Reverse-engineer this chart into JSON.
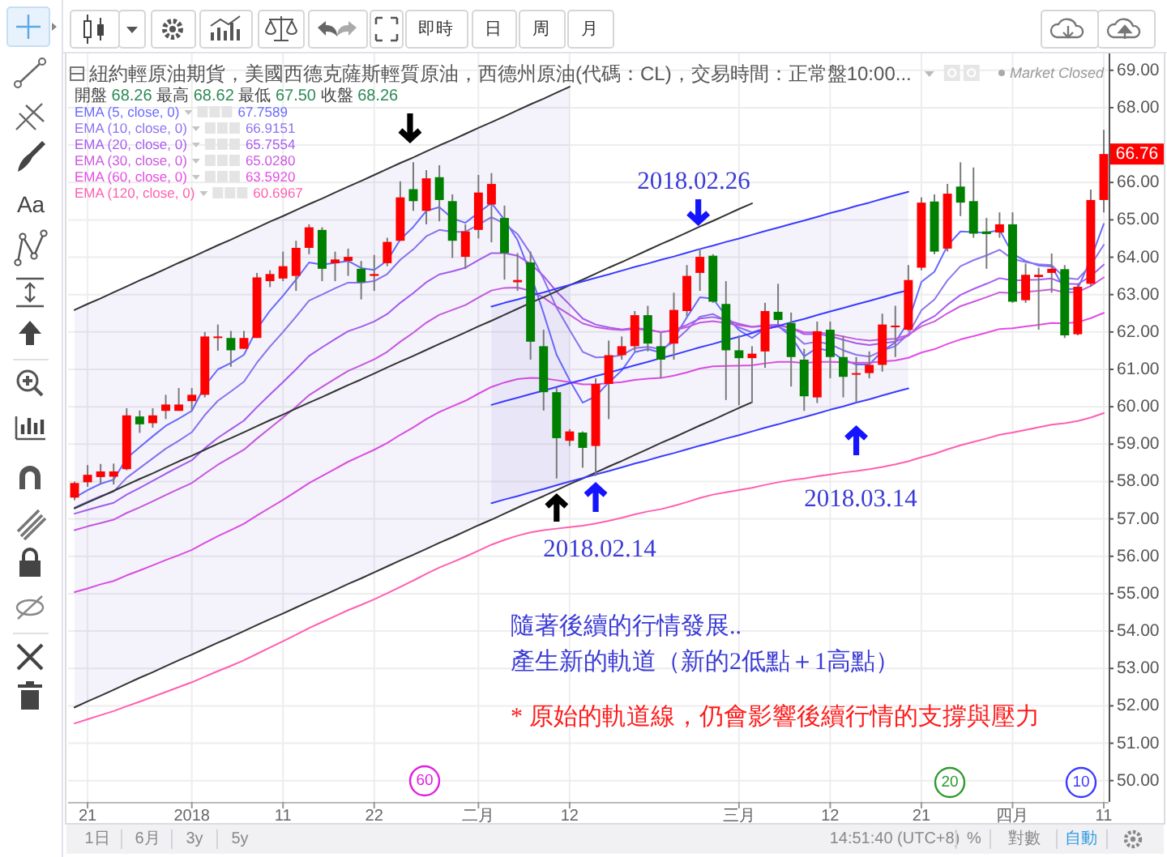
{
  "chart_data": {
    "type": "candlestick",
    "title": "紐約輕原油期貨，美國西德克薩斯輕質原油，西德州原油(代碼：CL)，交易時間：正常盤10:00...",
    "subtitle": "開盤 68.26 最高 68.62 最低 67.50 收盤 68.26",
    "categories": [
      null,
      "21",
      null,
      null,
      null,
      null,
      null,
      null,
      null,
      "2018",
      null,
      null,
      null,
      null,
      null,
      null,
      "11",
      null,
      null,
      null,
      null,
      null,
      null,
      "22",
      null,
      null,
      null,
      null,
      null,
      null,
      null,
      "二月",
      null,
      null,
      null,
      null,
      null,
      null,
      "12",
      null,
      null,
      null,
      null,
      null,
      null,
      null,
      null,
      null,
      null,
      null,
      null,
      "三月",
      null,
      null,
      null,
      null,
      null,
      null,
      "12",
      null,
      null,
      null,
      null,
      null,
      null,
      "21",
      null,
      null,
      null,
      null,
      null,
      null,
      "四月",
      null,
      null,
      null,
      null,
      null,
      null,
      "11"
    ],
    "ohlc": [
      [
        57.57,
        58.0,
        57.5,
        57.96
      ],
      [
        57.98,
        58.44,
        57.86,
        58.18
      ],
      [
        58.12,
        58.47,
        57.94,
        58.27
      ],
      [
        58.13,
        58.48,
        57.92,
        58.27
      ],
      [
        58.33,
        59.96,
        58.3,
        59.77
      ],
      [
        59.74,
        59.9,
        59.3,
        59.53
      ],
      [
        59.56,
        59.96,
        59.44,
        59.77
      ],
      [
        59.89,
        60.32,
        59.67,
        60.06
      ],
      [
        59.89,
        60.5,
        59.89,
        60.06
      ],
      [
        60.15,
        60.5,
        59.89,
        60.32
      ],
      [
        60.32,
        62.0,
        60.25,
        61.88
      ],
      [
        61.86,
        62.2,
        61.5,
        61.88
      ],
      [
        61.84,
        62.03,
        61.07,
        61.51
      ],
      [
        61.55,
        62.03,
        61.55,
        61.84
      ],
      [
        61.84,
        63.58,
        61.84,
        63.46
      ],
      [
        63.36,
        63.65,
        63.2,
        63.55
      ],
      [
        63.43,
        64.15,
        63.36,
        63.76
      ],
      [
        63.5,
        64.44,
        63.1,
        64.25
      ],
      [
        64.25,
        64.88,
        64.08,
        64.8
      ],
      [
        64.73,
        64.8,
        63.36,
        63.69
      ],
      [
        63.84,
        64.15,
        63.36,
        63.94
      ],
      [
        63.9,
        64.23,
        63.5,
        64.01
      ],
      [
        63.69,
        63.9,
        62.87,
        63.33
      ],
      [
        63.5,
        64.06,
        63.1,
        63.55
      ],
      [
        63.84,
        64.52,
        63.76,
        64.41
      ],
      [
        64.44,
        66.03,
        64.44,
        65.6
      ],
      [
        65.82,
        66.54,
        65.24,
        65.5
      ],
      [
        65.24,
        66.33,
        64.88,
        66.11
      ],
      [
        66.14,
        66.46,
        64.96,
        65.53
      ],
      [
        65.5,
        65.68,
        63.98,
        64.44
      ],
      [
        64.01,
        64.88,
        63.69,
        64.69
      ],
      [
        64.73,
        66.2,
        64.5,
        65.73
      ],
      [
        65.41,
        66.25,
        64.4,
        65.96
      ],
      [
        65.05,
        65.38,
        63.4,
        64.11
      ],
      [
        63.33,
        64.11,
        63.1,
        63.39
      ],
      [
        63.86,
        64.15,
        61.26,
        61.74
      ],
      [
        61.62,
        62.06,
        59.9,
        60.39
      ],
      [
        60.39,
        60.5,
        58.08,
        59.16
      ],
      [
        59.09,
        59.4,
        58.95,
        59.34
      ],
      [
        59.31,
        59.34,
        58.37,
        58.9
      ],
      [
        58.95,
        60.76,
        58.15,
        60.61
      ],
      [
        60.61,
        61.77,
        59.67,
        61.38
      ],
      [
        61.38,
        61.88,
        61.26,
        61.62
      ],
      [
        61.62,
        62.56,
        61.48,
        62.45
      ],
      [
        62.45,
        62.7,
        61.48,
        61.69
      ],
      [
        61.62,
        61.98,
        60.76,
        61.26
      ],
      [
        61.69,
        63.05,
        61.26,
        62.59
      ],
      [
        62.56,
        63.79,
        62.42,
        63.5
      ],
      [
        63.58,
        64.23,
        63.1,
        64.01
      ],
      [
        64.04,
        64.08,
        62.78,
        62.81
      ],
      [
        62.75,
        63.36,
        60.18,
        61.51
      ],
      [
        61.51,
        61.91,
        60.04,
        61.3
      ],
      [
        61.3,
        61.62,
        60.11,
        61.42
      ],
      [
        61.48,
        62.78,
        61.04,
        62.56
      ],
      [
        62.54,
        63.29,
        62.2,
        62.32
      ],
      [
        62.24,
        62.52,
        60.54,
        61.33
      ],
      [
        61.26,
        61.55,
        59.89,
        60.28
      ],
      [
        60.25,
        62.28,
        60.1,
        62.02
      ],
      [
        62.06,
        62.28,
        60.76,
        61.33
      ],
      [
        61.33,
        61.9,
        60.25,
        60.8
      ],
      [
        60.87,
        61.33,
        60.11,
        60.9
      ],
      [
        60.9,
        61.48,
        60.76,
        61.12
      ],
      [
        61.12,
        62.49,
        60.94,
        62.2
      ],
      [
        62.13,
        62.7,
        61.33,
        62.17
      ],
      [
        62.06,
        63.79,
        62.02,
        63.39
      ],
      [
        63.72,
        65.6,
        63.65,
        65.46
      ],
      [
        65.49,
        65.68,
        64.08,
        64.15
      ],
      [
        64.23,
        65.96,
        64.15,
        65.7
      ],
      [
        65.89,
        66.54,
        65.1,
        65.46
      ],
      [
        65.5,
        66.4,
        64.52,
        64.63
      ],
      [
        64.69,
        65.05,
        63.69,
        64.62
      ],
      [
        64.66,
        65.2,
        64.52,
        64.88
      ],
      [
        64.88,
        65.2,
        62.78,
        62.81
      ],
      [
        62.85,
        63.83,
        62.78,
        63.53
      ],
      [
        63.47,
        63.72,
        62.06,
        63.53
      ],
      [
        63.58,
        64.1,
        63.05,
        63.69
      ],
      [
        63.68,
        63.79,
        61.84,
        61.91
      ],
      [
        61.94,
        63.29,
        61.91,
        63.21
      ],
      [
        63.29,
        65.81,
        63.21,
        65.53
      ],
      [
        65.53,
        67.41,
        65.2,
        66.76
      ]
    ],
    "series": [
      {
        "name": "EMA (5, close, 0)",
        "type": "line",
        "color": "#6a6aff",
        "values": [
          57.57,
          57.77,
          57.94,
          58.05,
          58.62,
          58.92,
          59.21,
          59.49,
          59.68,
          59.89,
          60.56,
          61.0,
          61.17,
          61.39,
          62.08,
          62.57,
          62.97,
          63.4,
          63.86,
          63.8,
          63.85,
          63.9,
          63.71,
          63.66,
          63.91,
          64.47,
          64.81,
          65.24,
          65.34,
          65.04,
          64.92,
          65.19,
          65.45,
          65.0,
          64.46,
          63.55,
          62.5,
          61.39,
          60.71,
          60.11,
          60.28,
          60.65,
          60.97,
          61.46,
          61.54,
          61.45,
          61.83,
          62.39,
          62.93,
          62.89,
          62.43,
          62.05,
          61.84,
          62.08,
          62.16,
          61.88,
          61.35,
          61.57,
          61.49,
          61.26,
          61.13,
          61.13,
          61.49,
          61.72,
          62.28,
          63.34,
          63.61,
          64.31,
          64.69,
          64.67,
          64.65,
          64.73,
          64.09,
          63.9,
          63.78,
          63.75,
          63.14,
          63.16,
          63.95,
          64.89
        ]
      },
      {
        "name": "EMA (10, close, 0)",
        "type": "line",
        "color": "#8f74ee",
        "values": [
          57.3,
          57.46,
          57.61,
          57.73,
          58.1,
          58.36,
          58.62,
          58.88,
          59.09,
          59.32,
          59.78,
          60.16,
          60.41,
          60.67,
          61.18,
          61.61,
          62.0,
          62.41,
          62.84,
          63.0,
          63.17,
          63.32,
          63.32,
          63.36,
          63.55,
          63.93,
          64.21,
          64.56,
          64.73,
          64.68,
          64.68,
          64.87,
          65.07,
          64.9,
          64.62,
          64.1,
          63.42,
          62.65,
          62.05,
          61.47,
          61.32,
          61.33,
          61.38,
          61.57,
          61.6,
          61.54,
          61.73,
          62.05,
          62.41,
          62.48,
          62.3,
          62.12,
          61.99,
          62.1,
          62.14,
          61.99,
          61.68,
          61.74,
          61.67,
          61.51,
          61.39,
          61.34,
          61.5,
          61.62,
          61.94,
          62.58,
          62.87,
          63.38,
          63.76,
          63.92,
          64.05,
          64.2,
          63.95,
          63.87,
          63.81,
          63.79,
          63.45,
          63.41,
          63.79,
          64.33
        ]
      },
      {
        "name": "EMA (20, close, 0)",
        "type": "line",
        "color": "#a85cf0",
        "values": [
          57.14,
          57.24,
          57.34,
          57.43,
          57.65,
          57.83,
          58.02,
          58.21,
          58.39,
          58.57,
          58.89,
          59.17,
          59.4,
          59.63,
          59.99,
          60.33,
          60.66,
          61.0,
          61.36,
          61.59,
          61.81,
          62.02,
          62.14,
          62.28,
          62.48,
          62.78,
          63.04,
          63.33,
          63.54,
          63.62,
          63.72,
          63.92,
          64.11,
          64.11,
          64.04,
          63.82,
          63.5,
          63.08,
          62.73,
          62.36,
          62.2,
          62.12,
          62.07,
          62.11,
          62.07,
          61.99,
          62.05,
          62.19,
          62.36,
          62.4,
          62.32,
          62.22,
          62.14,
          62.18,
          62.19,
          62.11,
          61.94,
          61.95,
          61.89,
          61.79,
          61.7,
          61.65,
          61.7,
          61.74,
          61.9,
          62.24,
          62.42,
          62.73,
          62.99,
          63.15,
          63.29,
          63.44,
          63.38,
          63.39,
          63.4,
          63.43,
          63.29,
          63.28,
          63.49,
          63.8
        ]
      },
      {
        "name": "EMA (30, close, 0)",
        "type": "line",
        "color": "#cc58e0",
        "values": [
          56.7,
          56.8,
          56.89,
          56.98,
          57.16,
          57.31,
          57.47,
          57.64,
          57.8,
          57.96,
          58.21,
          58.45,
          58.65,
          58.85,
          59.15,
          59.43,
          59.71,
          60.0,
          60.31,
          60.53,
          60.75,
          60.96,
          61.11,
          61.27,
          61.47,
          61.74,
          61.98,
          62.25,
          62.46,
          62.59,
          62.72,
          62.92,
          63.11,
          63.18,
          63.19,
          63.1,
          62.92,
          62.68,
          62.46,
          62.23,
          62.13,
          62.08,
          62.05,
          62.08,
          62.05,
          62.0,
          62.04,
          62.13,
          62.25,
          62.29,
          62.24,
          62.18,
          62.13,
          62.16,
          62.17,
          62.11,
          61.99,
          61.99,
          61.95,
          61.88,
          61.81,
          61.77,
          61.8,
          61.82,
          61.92,
          62.15,
          62.28,
          62.5,
          62.69,
          62.81,
          62.93,
          63.06,
          63.04,
          63.07,
          63.1,
          63.14,
          63.06,
          63.07,
          63.23,
          63.46
        ]
      },
      {
        "name": "EMA (60, close, 0)",
        "type": "line",
        "color": "#e44ce4",
        "values": [
          55.04,
          55.14,
          55.25,
          55.34,
          55.49,
          55.62,
          55.76,
          55.9,
          56.03,
          56.17,
          56.36,
          56.54,
          56.7,
          56.87,
          57.09,
          57.3,
          57.51,
          57.73,
          57.96,
          58.15,
          58.34,
          58.53,
          58.69,
          58.85,
          59.03,
          59.25,
          59.45,
          59.67,
          59.86,
          60.01,
          60.16,
          60.35,
          60.53,
          60.65,
          60.74,
          60.77,
          60.76,
          60.71,
          60.66,
          60.6,
          60.6,
          60.63,
          60.66,
          60.72,
          60.75,
          60.77,
          60.83,
          60.92,
          61.02,
          61.08,
          61.09,
          61.1,
          61.11,
          61.16,
          61.2,
          61.2,
          61.17,
          61.2,
          61.2,
          61.19,
          61.18,
          61.18,
          61.21,
          61.24,
          61.31,
          61.45,
          61.54,
          61.68,
          61.8,
          61.89,
          61.98,
          62.08,
          62.1,
          62.15,
          62.19,
          62.24,
          62.23,
          62.26,
          62.37,
          62.51
        ]
      },
      {
        "name": "EMA (120, close, 0)",
        "type": "line",
        "color": "#ff5fb0",
        "values": [
          51.53,
          51.64,
          51.75,
          51.86,
          51.99,
          52.11,
          52.24,
          52.37,
          52.5,
          52.63,
          52.78,
          52.93,
          53.07,
          53.22,
          53.39,
          53.56,
          53.73,
          53.9,
          54.08,
          54.24,
          54.4,
          54.56,
          54.7,
          54.85,
          55.01,
          55.18,
          55.35,
          55.53,
          55.7,
          55.84,
          55.99,
          56.15,
          56.31,
          56.44,
          56.55,
          56.64,
          56.7,
          56.74,
          56.78,
          56.82,
          56.88,
          56.95,
          57.03,
          57.12,
          57.2,
          57.26,
          57.35,
          57.45,
          57.56,
          57.65,
          57.71,
          57.77,
          57.83,
          57.91,
          57.98,
          58.04,
          58.08,
          58.14,
          58.19,
          58.24,
          58.28,
          58.33,
          58.39,
          58.46,
          58.54,
          58.65,
          58.74,
          58.86,
          58.97,
          59.06,
          59.15,
          59.25,
          59.31,
          59.38,
          59.45,
          59.52,
          59.56,
          59.62,
          59.71,
          59.83
        ]
      },
      {
        "type": "line",
        "color": "#333333",
        "values": [
          57.28,
          57.44,
          57.59,
          57.75,
          57.91,
          58.07,
          58.22,
          58.38,
          58.54,
          58.69,
          58.85,
          59.01,
          59.16,
          59.32,
          59.48,
          59.64,
          59.79,
          59.95,
          60.11,
          60.26,
          60.42,
          60.58,
          60.73,
          60.89,
          61.05,
          61.21,
          61.36,
          61.52,
          61.68,
          61.83,
          61.99,
          62.15,
          62.3,
          62.46,
          62.62,
          62.78,
          62.93,
          63.09,
          63.25,
          63.4,
          63.56,
          63.72,
          63.87,
          64.03,
          64.19,
          64.35,
          64.5,
          64.66,
          64.82,
          64.97,
          65.13,
          65.29,
          65.44,
          null,
          null,
          null,
          null,
          null,
          null,
          null,
          null,
          null,
          null,
          null,
          null,
          null,
          null,
          null,
          null,
          null,
          null,
          null,
          null,
          null,
          null,
          null,
          null,
          null,
          null,
          null
        ],
        "lower": [
          51.96,
          52.12,
          52.27,
          52.43,
          52.59,
          52.75,
          52.9,
          53.06,
          53.22,
          53.37,
          53.53,
          53.69,
          53.84,
          54.0,
          54.16,
          54.32,
          54.47,
          54.63,
          54.79,
          54.94,
          55.1,
          55.26,
          55.41,
          55.57,
          55.73,
          55.89,
          56.04,
          56.2,
          56.36,
          56.51,
          56.67,
          56.83,
          56.98,
          57.14,
          57.3,
          57.46,
          57.61,
          57.77,
          57.93,
          null,
          null,
          null,
          null,
          null,
          null,
          null,
          null,
          null,
          null,
          null,
          null,
          null,
          null,
          null,
          null,
          null,
          null,
          null,
          null,
          null,
          null,
          null,
          null,
          null,
          null,
          null,
          null,
          null,
          null,
          null,
          null,
          null,
          null,
          null,
          null,
          null,
          null,
          null,
          null,
          null
        ],
        "upper": [
          62.59,
          62.75,
          62.9,
          63.06,
          63.22,
          63.38,
          63.53,
          63.69,
          63.85,
          64.0,
          64.16,
          64.32,
          64.47,
          64.63,
          64.79,
          64.95,
          65.1,
          65.26,
          65.42,
          65.57,
          65.73,
          65.89,
          66.04,
          66.2,
          66.36,
          66.52,
          66.67,
          66.83,
          66.99,
          67.14,
          67.3,
          67.46,
          67.61,
          67.77,
          67.93,
          68.09,
          68.24,
          68.4,
          68.56,
          null,
          null,
          null,
          null,
          null,
          null,
          null,
          null,
          null,
          null,
          null,
          null,
          null,
          null,
          null,
          null,
          null,
          null,
          null,
          null,
          null,
          null,
          null,
          null,
          null,
          null,
          null,
          null,
          null,
          null,
          null,
          null,
          null,
          null,
          null,
          null,
          null,
          null,
          null,
          null,
          null
        ]
      },
      {
        "type": "line",
        "color": "#3b3bff",
        "values": [
          null,
          null,
          null,
          null,
          null,
          null,
          null,
          null,
          null,
          null,
          null,
          null,
          null,
          null,
          null,
          null,
          null,
          null,
          null,
          null,
          null,
          null,
          null,
          null,
          null,
          null,
          null,
          null,
          null,
          null,
          null,
          null,
          60.05,
          60.15,
          60.24,
          60.34,
          60.43,
          60.53,
          60.63,
          60.72,
          60.82,
          60.91,
          61.01,
          61.11,
          61.2,
          61.3,
          61.39,
          61.49,
          61.59,
          61.68,
          61.78,
          61.87,
          61.97,
          62.07,
          62.16,
          62.26,
          62.35,
          62.45,
          62.55,
          62.64,
          62.74,
          62.83,
          62.93,
          63.03,
          63.12,
          null,
          null,
          null,
          null,
          null,
          null,
          null,
          null,
          null,
          null,
          null,
          null,
          null,
          null,
          null
        ],
        "lower": [
          null,
          null,
          null,
          null,
          null,
          null,
          null,
          null,
          null,
          null,
          null,
          null,
          null,
          null,
          null,
          null,
          null,
          null,
          null,
          null,
          null,
          null,
          null,
          null,
          null,
          null,
          null,
          null,
          null,
          null,
          null,
          null,
          57.42,
          57.52,
          57.61,
          57.71,
          57.8,
          57.9,
          58.0,
          58.09,
          58.19,
          58.28,
          58.38,
          58.48,
          58.57,
          58.67,
          58.76,
          58.86,
          58.96,
          59.05,
          59.15,
          59.24,
          59.34,
          59.44,
          59.53,
          59.63,
          59.72,
          59.82,
          59.92,
          60.01,
          60.11,
          60.2,
          60.3,
          60.4,
          60.49,
          null,
          null,
          null,
          null,
          null,
          null,
          null,
          null,
          null,
          null,
          null,
          null,
          null,
          null,
          null
        ],
        "upper": [
          null,
          null,
          null,
          null,
          null,
          null,
          null,
          null,
          null,
          null,
          null,
          null,
          null,
          null,
          null,
          null,
          null,
          null,
          null,
          null,
          null,
          null,
          null,
          null,
          null,
          null,
          null,
          null,
          null,
          null,
          null,
          null,
          62.68,
          62.78,
          62.87,
          62.97,
          63.06,
          63.16,
          63.26,
          63.35,
          63.45,
          63.54,
          63.64,
          63.74,
          63.83,
          63.93,
          64.02,
          64.12,
          64.22,
          64.31,
          64.41,
          64.5,
          64.6,
          64.7,
          64.79,
          64.89,
          64.98,
          65.08,
          65.18,
          65.27,
          65.37,
          65.46,
          65.56,
          65.66,
          65.75,
          null,
          null,
          null,
          null,
          null,
          null,
          null,
          null,
          null,
          null,
          null,
          null,
          null,
          null,
          null
        ]
      },
      {
        "type": "line",
        "color": "#333333",
        "values": [
          51.96,
          52.12,
          52.27,
          52.43,
          52.59,
          52.75,
          52.9,
          53.06,
          53.22,
          53.37,
          53.53,
          53.69,
          53.84,
          54.0,
          54.16,
          54.32,
          54.47,
          54.63,
          54.79,
          54.94,
          55.1,
          55.26,
          55.41,
          55.57,
          55.73,
          55.89,
          56.04,
          56.2,
          56.36,
          56.51,
          56.67,
          56.83,
          56.98,
          57.14,
          57.3,
          57.46,
          57.61,
          57.77,
          57.93,
          58.08,
          58.24,
          58.4,
          58.55,
          58.71,
          58.87,
          59.03,
          59.18,
          59.34,
          59.5,
          59.65,
          59.81,
          59.97,
          60.12,
          null,
          null,
          null,
          null,
          null,
          null,
          null,
          null,
          null,
          null,
          null,
          null,
          null,
          null,
          null,
          null,
          null,
          null,
          null,
          null,
          null,
          null,
          null,
          null,
          null,
          null,
          null
        ]
      },
      {
        "type": "line",
        "color": "#333333",
        "values": [
          62.59,
          62.75,
          62.9,
          63.06,
          63.22,
          63.38,
          63.53,
          63.69,
          63.85,
          64.0,
          64.16,
          64.32,
          64.47,
          64.63,
          64.79,
          64.95,
          65.1,
          65.26,
          65.42,
          65.57,
          65.73,
          65.89,
          66.04,
          66.2,
          66.36,
          66.52,
          66.67,
          66.83,
          66.99,
          67.14,
          67.3,
          67.46,
          67.61,
          67.77,
          67.93,
          68.09,
          68.24,
          68.4,
          68.56,
          null,
          null,
          null,
          null,
          null,
          null,
          null,
          null,
          null,
          null,
          null,
          null,
          null,
          null,
          null,
          null,
          null,
          null,
          null,
          null,
          null,
          null,
          null,
          null,
          null,
          null,
          null,
          null,
          null,
          null,
          null,
          null,
          null,
          null,
          null,
          null,
          null,
          null,
          null,
          null,
          null
        ]
      },
      {
        "type": "line",
        "color": "#3b3bff",
        "values": [
          null,
          null,
          null,
          null,
          null,
          null,
          null,
          null,
          null,
          null,
          null,
          null,
          null,
          null,
          null,
          null,
          null,
          null,
          null,
          null,
          null,
          null,
          null,
          null,
          null,
          null,
          null,
          null,
          null,
          null,
          null,
          null,
          57.42,
          57.52,
          57.61,
          57.71,
          57.8,
          57.9,
          58.0,
          58.09,
          58.19,
          58.28,
          58.38,
          58.48,
          58.57,
          58.67,
          58.76,
          58.86,
          58.96,
          59.05,
          59.15,
          59.24,
          59.34,
          59.44,
          59.53,
          59.63,
          59.72,
          59.82,
          59.92,
          60.01,
          60.11,
          60.2,
          60.3,
          60.4,
          60.49,
          null,
          null,
          null,
          null,
          null,
          null,
          null,
          null,
          null,
          null,
          null,
          null,
          null,
          null,
          null
        ]
      },
      {
        "type": "line",
        "color": "#3b3bff",
        "values": [
          null,
          null,
          null,
          null,
          null,
          null,
          null,
          null,
          null,
          null,
          null,
          null,
          null,
          null,
          null,
          null,
          null,
          null,
          null,
          null,
          null,
          null,
          null,
          null,
          null,
          null,
          null,
          null,
          null,
          null,
          null,
          null,
          62.68,
          62.78,
          62.87,
          62.97,
          63.06,
          63.16,
          63.26,
          63.35,
          63.45,
          63.54,
          63.64,
          63.74,
          63.83,
          63.93,
          64.02,
          64.12,
          64.22,
          64.31,
          64.41,
          64.5,
          64.6,
          64.7,
          64.79,
          64.89,
          64.98,
          65.08,
          65.18,
          65.27,
          65.37,
          65.46,
          65.56,
          65.66,
          65.75,
          null,
          null,
          null,
          null,
          null,
          null,
          null,
          null,
          null,
          null,
          null,
          null,
          null,
          null,
          null
        ]
      }
    ],
    "ylim": [
      49.43,
      69.45
    ],
    "yticks": [
      {
        "value": 50,
        "label": "50.00"
      },
      {
        "value": 51,
        "label": "51.00"
      },
      {
        "value": 52,
        "label": "52.00"
      },
      {
        "value": 53,
        "label": "53.00"
      },
      {
        "value": 54,
        "label": "54.00"
      },
      {
        "value": 55,
        "label": "55.00"
      },
      {
        "value": 56,
        "label": "56.00"
      },
      {
        "value": 57,
        "label": "57.00"
      },
      {
        "value": 58,
        "label": "58.00"
      },
      {
        "value": 59,
        "label": "59.00"
      },
      {
        "value": 60,
        "label": "60.00"
      },
      {
        "value": 61,
        "label": "61.00"
      },
      {
        "value": 62,
        "label": "62.00"
      },
      {
        "value": 63,
        "label": "63.00"
      },
      {
        "value": 64,
        "label": "64.00"
      },
      {
        "value": 65,
        "label": "65.00"
      },
      {
        "value": 66,
        "label": "66.00"
      },
      {
        "value": 67,
        "label": null
      },
      {
        "value": 68,
        "label": "68.00"
      },
      {
        "value": 69,
        "label": "69.00"
      }
    ],
    "grid": true,
    "legend": "top left",
    "annotations": [
      "2018.02.26",
      "2018.02.14",
      "2018.03.14",
      "隨著後續的行情發展..",
      "產生新的軌道（新的2低點＋1高點）",
      "* 原始的軌道線，仍會影響後續行情的支撐與壓力",
      "Market Closed",
      "67.7589",
      "66.9151",
      "65.7554",
      "65.0280",
      "63.5920",
      "60.6967",
      {
        "text": "66.76",
        "y": 66.76
      },
      "60",
      "20",
      "10",
      "即時",
      "日",
      "周",
      "月",
      "Aa",
      "1日",
      "6月",
      "3y",
      "5y",
      "14:51:40 (UTC+8)",
      "%",
      "對數",
      "自動"
    ]
  }
}
